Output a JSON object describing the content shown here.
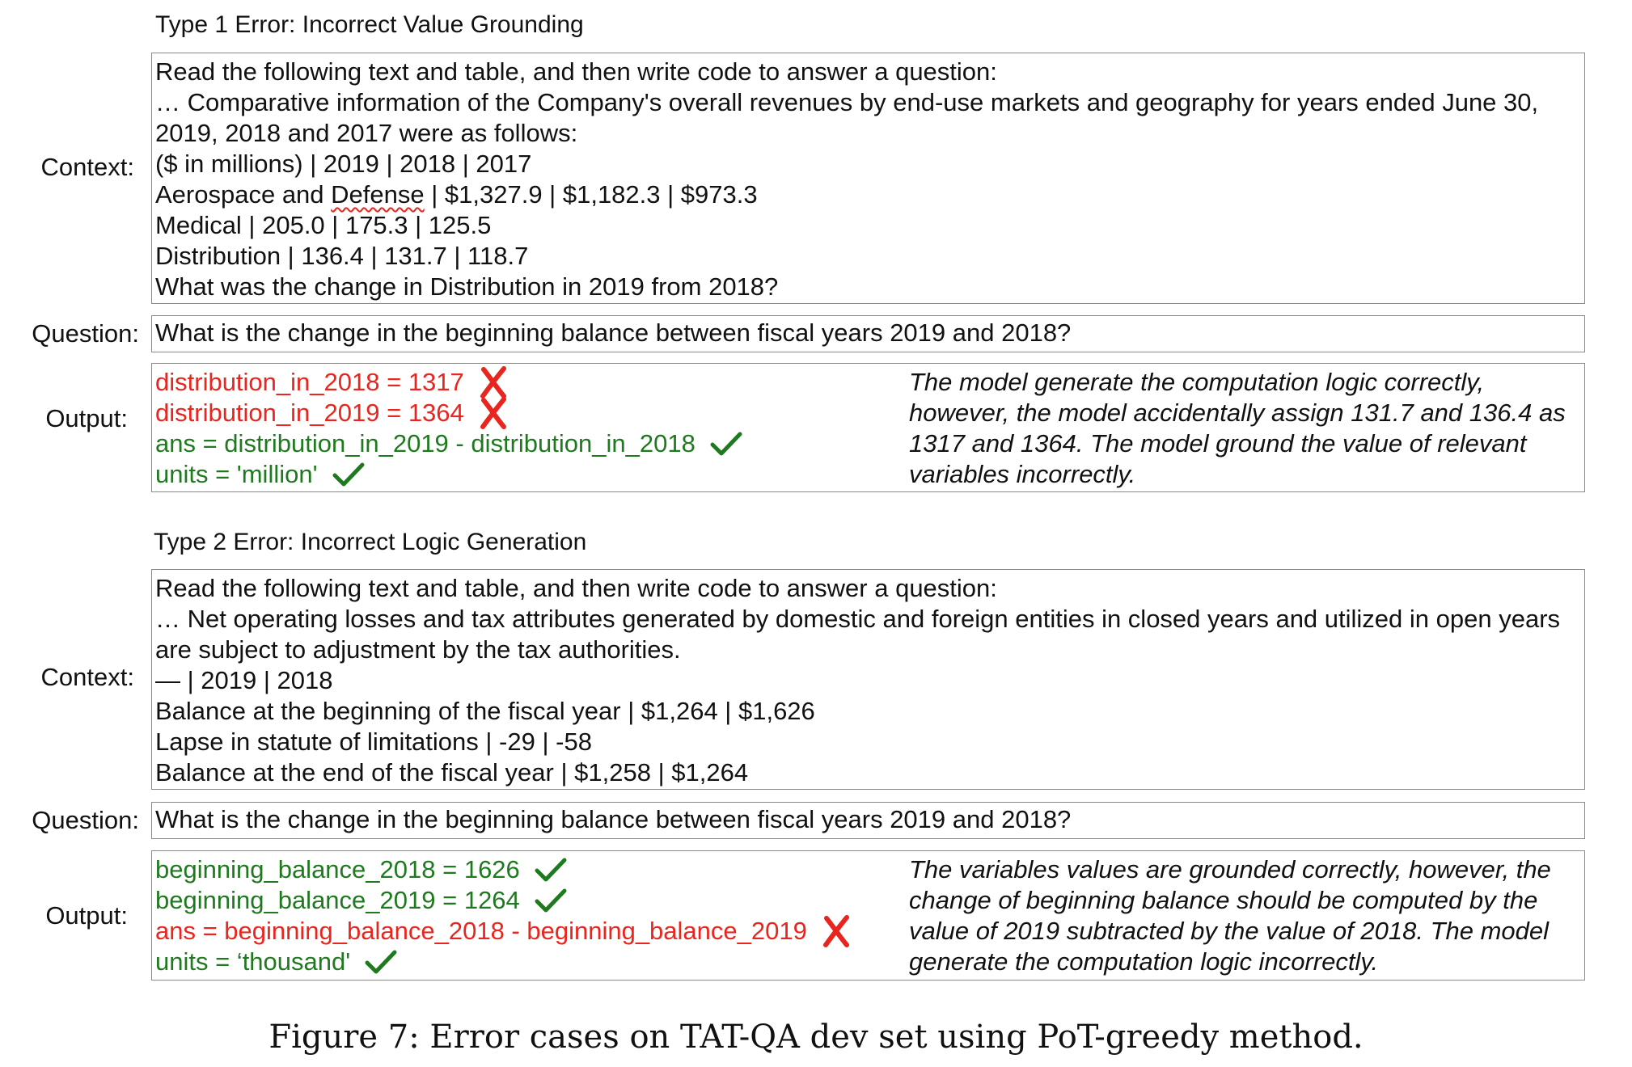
{
  "sections": [
    {
      "title": "Type 1 Error: Incorrect Value Grounding",
      "context_label": "Context:",
      "context_lines": [
        "Read the following text and table, and then write code to answer a question:",
        "… Comparative information of the Company's overall revenues by end-use markets and geography for years ended June 30,",
        "2019, 2018 and 2017 were as follows:",
        "($ in millions) | 2019 | 2018 | 2017",
        "Aerospace and Defense | $1,327.9 | $1,182.3 | $973.3",
        "Medical | 205.0 | 175.3 | 125.5",
        "Distribution | 136.4 | 131.7 | 118.7",
        "What was the change in Distribution in 2019 from 2018?"
      ],
      "question_label": "Question:",
      "question": "What is the change in the beginning balance between fiscal years 2019 and 2018?",
      "output_label": "Output:",
      "output_lines": [
        {
          "text": "distribution_in_2018 = 1317",
          "status": "wrong"
        },
        {
          "text": "distribution_in_2019 = 1364",
          "status": "wrong"
        },
        {
          "text": "ans = distribution_in_2019 - distribution_in_2018",
          "status": "correct"
        },
        {
          "text": "units = 'million'",
          "status": "correct"
        }
      ],
      "explanation_lines": [
        "The model generate the computation logic correctly,",
        "however, the model accidentally assign 131.7 and 136.4 as",
        "1317 and 1364. The model ground the value of relevant",
        "variables incorrectly."
      ]
    },
    {
      "title": "Type 2 Error: Incorrect Logic Generation",
      "context_label": "Context:",
      "context_lines": [
        "Read the following text and table, and then write code to answer a question:",
        "… Net operating losses and tax attributes generated by domestic and foreign entities in closed years and utilized in open years",
        "are subject to adjustment by the tax authorities.",
        "— | 2019 | 2018",
        "Balance at the beginning of the fiscal year | $1,264 | $1,626",
        "Lapse in statute of limitations | -29  | -58",
        "Balance at the end of the fiscal year | $1,258 | $1,264"
      ],
      "question_label": "Question:",
      "question": "What is the change in the beginning balance between fiscal years 2019 and 2018?",
      "output_label": "Output:",
      "output_lines": [
        {
          "text": "beginning_balance_2018 = 1626",
          "status": "correct"
        },
        {
          "text": "beginning_balance_2019 = 1264",
          "status": "correct"
        },
        {
          "text": "ans = beginning_balance_2018 - beginning_balance_2019",
          "status": "wrong"
        },
        {
          "text": "units = ‘thousand'",
          "status": "correct"
        }
      ],
      "explanation_lines": [
        "The variables values are grounded correctly, however, the",
        "change of beginning balance should be computed by the",
        "value of 2019 subtracted by the value of 2018. The model",
        "generate the computation logic incorrectly."
      ]
    }
  ],
  "caption": "Figure 7: Error cases on TAT-QA dev set using PoT-greedy method.",
  "colors": {
    "correct": "#1f7a1f",
    "wrong": "#e8261f",
    "border": "#8a8a8a"
  },
  "icons": {
    "correct": "check-icon",
    "wrong": "cross-icon"
  }
}
